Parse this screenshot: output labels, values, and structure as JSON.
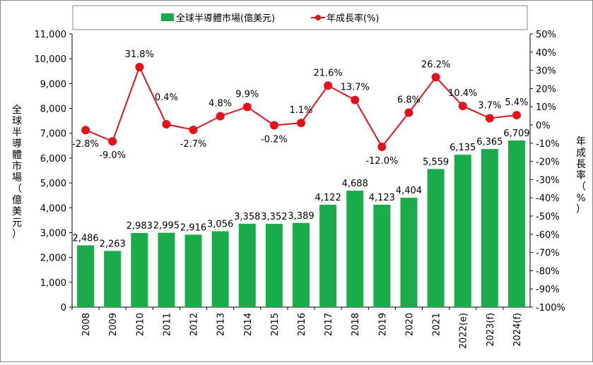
{
  "chart_data": {
    "type": "bar+line",
    "categories": [
      "2008",
      "2009",
      "2010",
      "2011",
      "2012",
      "2013",
      "2014",
      "2015",
      "2016",
      "2017",
      "2018",
      "2019",
      "2020",
      "2021",
      "2022(e)",
      "2023(f)",
      "2024(f)"
    ],
    "series": [
      {
        "name": "全球半導體市場(億美元)",
        "type": "bar",
        "axis": "left",
        "color": "#1aab4b",
        "values": [
          2486,
          2263,
          2983,
          2995,
          2916,
          3056,
          3358,
          3352,
          3389,
          4122,
          4688,
          4123,
          4404,
          5559,
          6135,
          6365,
          6709
        ],
        "labels": [
          "2,486",
          "2,263",
          "2,983",
          "2,995",
          "2,916",
          "3,056",
          "3,358",
          "3,352",
          "3,389",
          "4,122",
          "4,688",
          "4,123",
          "4,404",
          "5,559",
          "6,135",
          "6,365",
          "6,709"
        ]
      },
      {
        "name": "年成長率(%)",
        "type": "line",
        "axis": "right",
        "color": "#e3121b",
        "values": [
          -2.8,
          -9.0,
          31.8,
          0.4,
          -2.7,
          4.8,
          9.9,
          -0.2,
          1.1,
          21.6,
          13.7,
          -12.0,
          6.8,
          26.2,
          10.4,
          3.7,
          5.4
        ],
        "labels": [
          "-2.8%",
          "-9.0%",
          "31.8%",
          "0.4%",
          "-2.7%",
          "4.8%",
          "9.9%",
          "-0.2%",
          "1.1%",
          "21.6%",
          "13.7%",
          "-12.0%",
          "6.8%",
          "26.2%",
          "10.4%",
          "3.7%",
          "5.4%"
        ]
      }
    ],
    "ylabel_left": "全球半導體市場（億美元）",
    "ylabel_right": "年成長率（%）",
    "ylim_left": [
      0,
      11000
    ],
    "yticks_left": [
      "0",
      "1,000",
      "2,000",
      "3,000",
      "4,000",
      "5,000",
      "6,000",
      "7,000",
      "8,000",
      "9,000",
      "10,000",
      "11,000"
    ],
    "ylim_right": [
      -100,
      50
    ],
    "yticks_right": [
      "-100%",
      "-90%",
      "-80%",
      "-70%",
      "-60%",
      "-50%",
      "-40%",
      "-30%",
      "-20%",
      "-10%",
      "0%",
      "10%",
      "20%",
      "30%",
      "40%",
      "50%"
    ],
    "grid": false,
    "legend": "top"
  }
}
